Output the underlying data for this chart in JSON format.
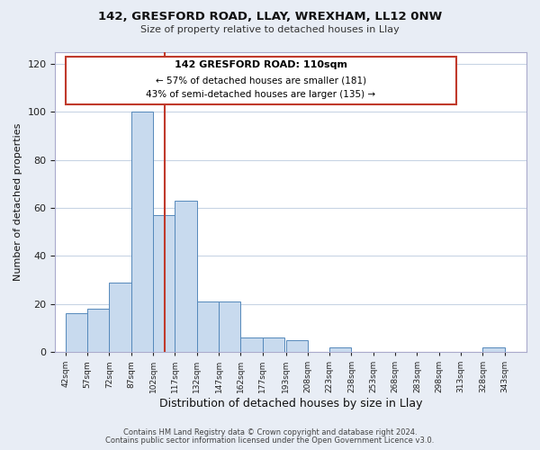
{
  "title_line1": "142, GRESFORD ROAD, LLAY, WREXHAM, LL12 0NW",
  "title_line2": "Size of property relative to detached houses in Llay",
  "xlabel": "Distribution of detached houses by size in Llay",
  "ylabel": "Number of detached properties",
  "footer_line1": "Contains HM Land Registry data © Crown copyright and database right 2024.",
  "footer_line2": "Contains public sector information licensed under the Open Government Licence v3.0.",
  "bar_edges": [
    42,
    57,
    72,
    87,
    102,
    117,
    132,
    147,
    162,
    177,
    193,
    208,
    223,
    238,
    253,
    268,
    283,
    298,
    313,
    328,
    343
  ],
  "bar_heights": [
    16,
    18,
    29,
    100,
    57,
    63,
    21,
    21,
    6,
    6,
    5,
    0,
    2,
    0,
    0,
    0,
    0,
    0,
    0,
    2
  ],
  "bar_color": "#c8daee",
  "bar_edge_color": "#5588bb",
  "vline_x": 110,
  "vline_color": "#c0392b",
  "ylim": [
    0,
    125
  ],
  "xlim": [
    35,
    358
  ],
  "yticks": [
    0,
    20,
    40,
    60,
    80,
    100,
    120
  ],
  "tick_labels": [
    "42sqm",
    "57sqm",
    "72sqm",
    "87sqm",
    "102sqm",
    "117sqm",
    "132sqm",
    "147sqm",
    "162sqm",
    "177sqm",
    "193sqm",
    "208sqm",
    "223sqm",
    "238sqm",
    "253sqm",
    "268sqm",
    "283sqm",
    "298sqm",
    "313sqm",
    "328sqm",
    "343sqm"
  ],
  "tick_positions": [
    42,
    57,
    72,
    87,
    102,
    117,
    132,
    147,
    162,
    177,
    193,
    208,
    223,
    238,
    253,
    268,
    283,
    298,
    313,
    328,
    343
  ],
  "background_color": "#e8edf5",
  "plot_background_color": "#ffffff",
  "grid_color": "#c8d4e4",
  "ann_line1": "142 GRESFORD ROAD: 110sqm",
  "ann_line2": "← 57% of detached houses are smaller (181)",
  "ann_line3": "43% of semi-detached houses are larger (135) →",
  "ann_box_color": "#c0392b"
}
